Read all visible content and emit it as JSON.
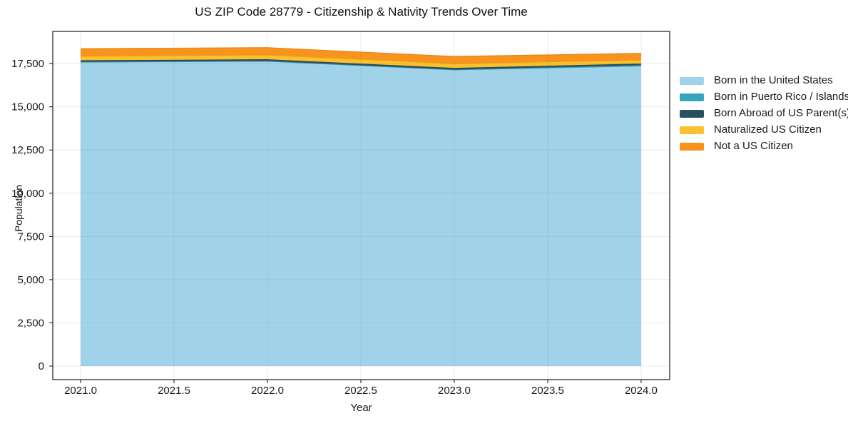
{
  "chart_data": {
    "type": "area",
    "stacked": true,
    "title": "US ZIP Code 28779 - Citizenship & Nativity Trends Over Time",
    "xlabel": "Year",
    "ylabel": "Population",
    "x": [
      2021,
      2022,
      2023,
      2024
    ],
    "series": [
      {
        "name": "Born in the United States",
        "color": "#A0D2EA",
        "edge": null,
        "values": [
          17560,
          17610,
          17110,
          17330
        ]
      },
      {
        "name": "Born in Puerto Rico / Islands",
        "color": "#38A5BD",
        "edge": "#2E93A9",
        "values": [
          40,
          40,
          40,
          80
        ]
      },
      {
        "name": "Born Abroad of US Parent(s)",
        "color": "#2A4F60",
        "edge": "#27475A",
        "values": [
          90,
          100,
          100,
          90
        ]
      },
      {
        "name": "Naturalized US Citizen",
        "color": "#FBC02D",
        "edge": "#E8A010",
        "values": [
          240,
          250,
          250,
          210
        ]
      },
      {
        "name": "Not a US Citizen",
        "color": "#F8941E",
        "edge": "#EE860E",
        "values": [
          430,
          420,
          410,
          380
        ]
      }
    ],
    "xticks": {
      "values": [
        2021.0,
        2021.5,
        2022.0,
        2022.5,
        2023.0,
        2023.5,
        2024.0
      ],
      "labels": [
        "2021.0",
        "2021.5",
        "2022.0",
        "2022.5",
        "2023.0",
        "2023.5",
        "2024.0"
      ]
    },
    "yticks": {
      "values": [
        0,
        2500,
        5000,
        7500,
        10000,
        12500,
        15000,
        17500
      ],
      "labels": [
        "0",
        "2,500",
        "5,000",
        "7,500",
        "10,000",
        "12,500",
        "15,000",
        "17,500"
      ]
    },
    "xlim": [
      2020.851,
      2024.153
    ],
    "ylim": [
      -784,
      19362
    ],
    "grid": true,
    "legend_position": "right",
    "colors": {
      "spine": "#1a1a1a",
      "tick": "#262626",
      "tick_text": "#1a1a1a",
      "gridline": "rgba(128,128,128,0.16)",
      "background": "#ffffff"
    }
  }
}
